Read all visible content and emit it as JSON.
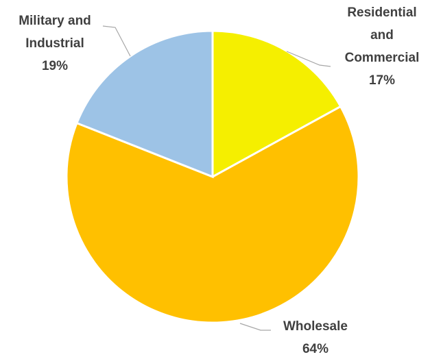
{
  "chart_data": {
    "type": "pie",
    "categories": [
      "Residential and Commercial",
      "Wholesale",
      "Military and Industrial"
    ],
    "values": [
      17,
      64,
      19
    ],
    "value_labels": [
      "17%",
      "64%",
      "19%"
    ],
    "colors": [
      "#f5ef00",
      "#ffc000",
      "#9dc3e6"
    ]
  }
}
